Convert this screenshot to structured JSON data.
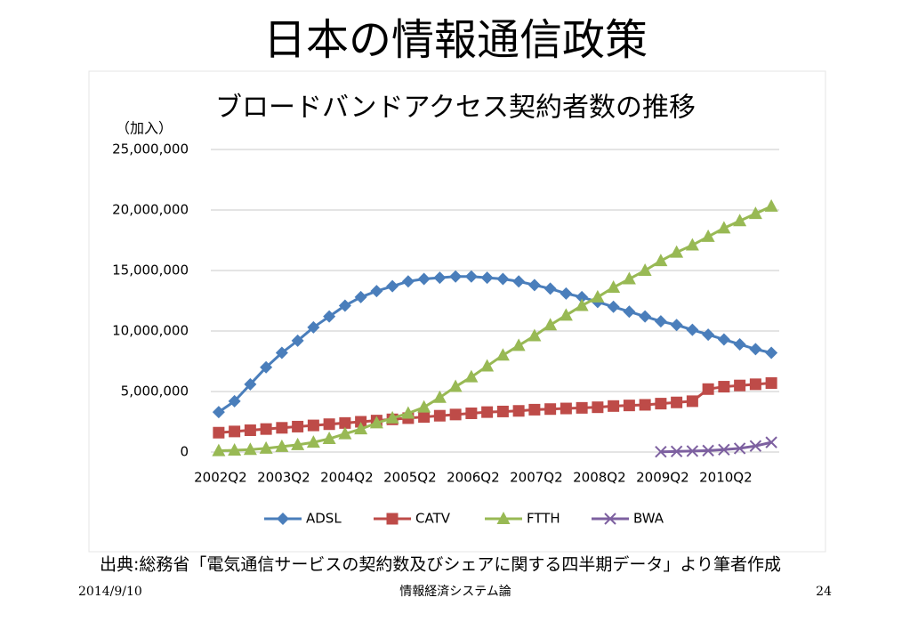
{
  "slide_title": "日本の情報通信政策",
  "source": "出典:総務省「電気通信サービスの契約数及びシェアに関する四半期データ」より筆者作成",
  "footer": {
    "date": "2014/9/10",
    "course": "情報経済システム論",
    "page": "24"
  },
  "chart_data": {
    "type": "line",
    "title": "ブロードバンドアクセス契約者数の推移",
    "y_label": "（加入）",
    "categories": [
      "2002Q2",
      null,
      null,
      null,
      "2003Q2",
      null,
      null,
      null,
      "2004Q2",
      null,
      null,
      null,
      "2005Q2",
      null,
      null,
      null,
      "2006Q2",
      null,
      null,
      null,
      "2007Q2",
      null,
      null,
      null,
      "2008Q2",
      null,
      null,
      null,
      "2009Q2",
      null,
      null,
      null,
      "2010Q2",
      null,
      null,
      null
    ],
    "ylim": [
      0,
      25000000
    ],
    "yticks": [
      0,
      {
        "value": 5000000,
        "label": "5,000,000"
      },
      {
        "value": 10000000,
        "label": "10,000,000"
      },
      {
        "value": 15000000,
        "label": "15,000,000"
      },
      {
        "value": 20000000,
        "label": "20,000,000"
      },
      {
        "value": 25000000,
        "label": "25,000,000"
      }
    ],
    "grid": true,
    "legend": "bottom",
    "series": [
      {
        "name": "ADSL",
        "color": "#4a7ebb",
        "marker": "diamond",
        "values": [
          3300000,
          4200000,
          5600000,
          7000000,
          8200000,
          9200000,
          10300000,
          11200000,
          12100000,
          12800000,
          13300000,
          13700000,
          14100000,
          14300000,
          14400000,
          14500000,
          14500000,
          14400000,
          14300000,
          14100000,
          13800000,
          13500000,
          13100000,
          12800000,
          12400000,
          12000000,
          11600000,
          11200000,
          10800000,
          10500000,
          10100000,
          9700000,
          9300000,
          8900000,
          8500000,
          8200000
        ]
      },
      {
        "name": "CATV",
        "color": "#be4b48",
        "marker": "square",
        "values": [
          1600000,
          1700000,
          1800000,
          1900000,
          2000000,
          2100000,
          2200000,
          2300000,
          2400000,
          2500000,
          2600000,
          2700000,
          2800000,
          2900000,
          3000000,
          3100000,
          3200000,
          3300000,
          3350000,
          3400000,
          3500000,
          3550000,
          3600000,
          3650000,
          3700000,
          3800000,
          3850000,
          3900000,
          4000000,
          4100000,
          4200000,
          5200000,
          5400000,
          5500000,
          5600000,
          5700000
        ]
      },
      {
        "name": "FTTH",
        "color": "#98b954",
        "marker": "triangle",
        "values": [
          100000,
          150000,
          200000,
          300000,
          450000,
          600000,
          800000,
          1100000,
          1500000,
          1900000,
          2400000,
          2800000,
          3200000,
          3700000,
          4500000,
          5400000,
          6200000,
          7100000,
          8000000,
          8800000,
          9600000,
          10500000,
          11300000,
          12100000,
          12800000,
          13600000,
          14300000,
          15000000,
          15800000,
          16500000,
          17100000,
          17800000,
          18500000,
          19100000,
          19700000,
          20300000
        ]
      },
      {
        "name": "BWA",
        "color": "#7d60a0",
        "marker": "x",
        "values": [
          null,
          null,
          null,
          null,
          null,
          null,
          null,
          null,
          null,
          null,
          null,
          null,
          null,
          null,
          null,
          null,
          null,
          null,
          null,
          null,
          null,
          null,
          null,
          null,
          null,
          null,
          null,
          null,
          20000,
          50000,
          80000,
          120000,
          200000,
          300000,
          500000,
          800000
        ]
      }
    ]
  }
}
